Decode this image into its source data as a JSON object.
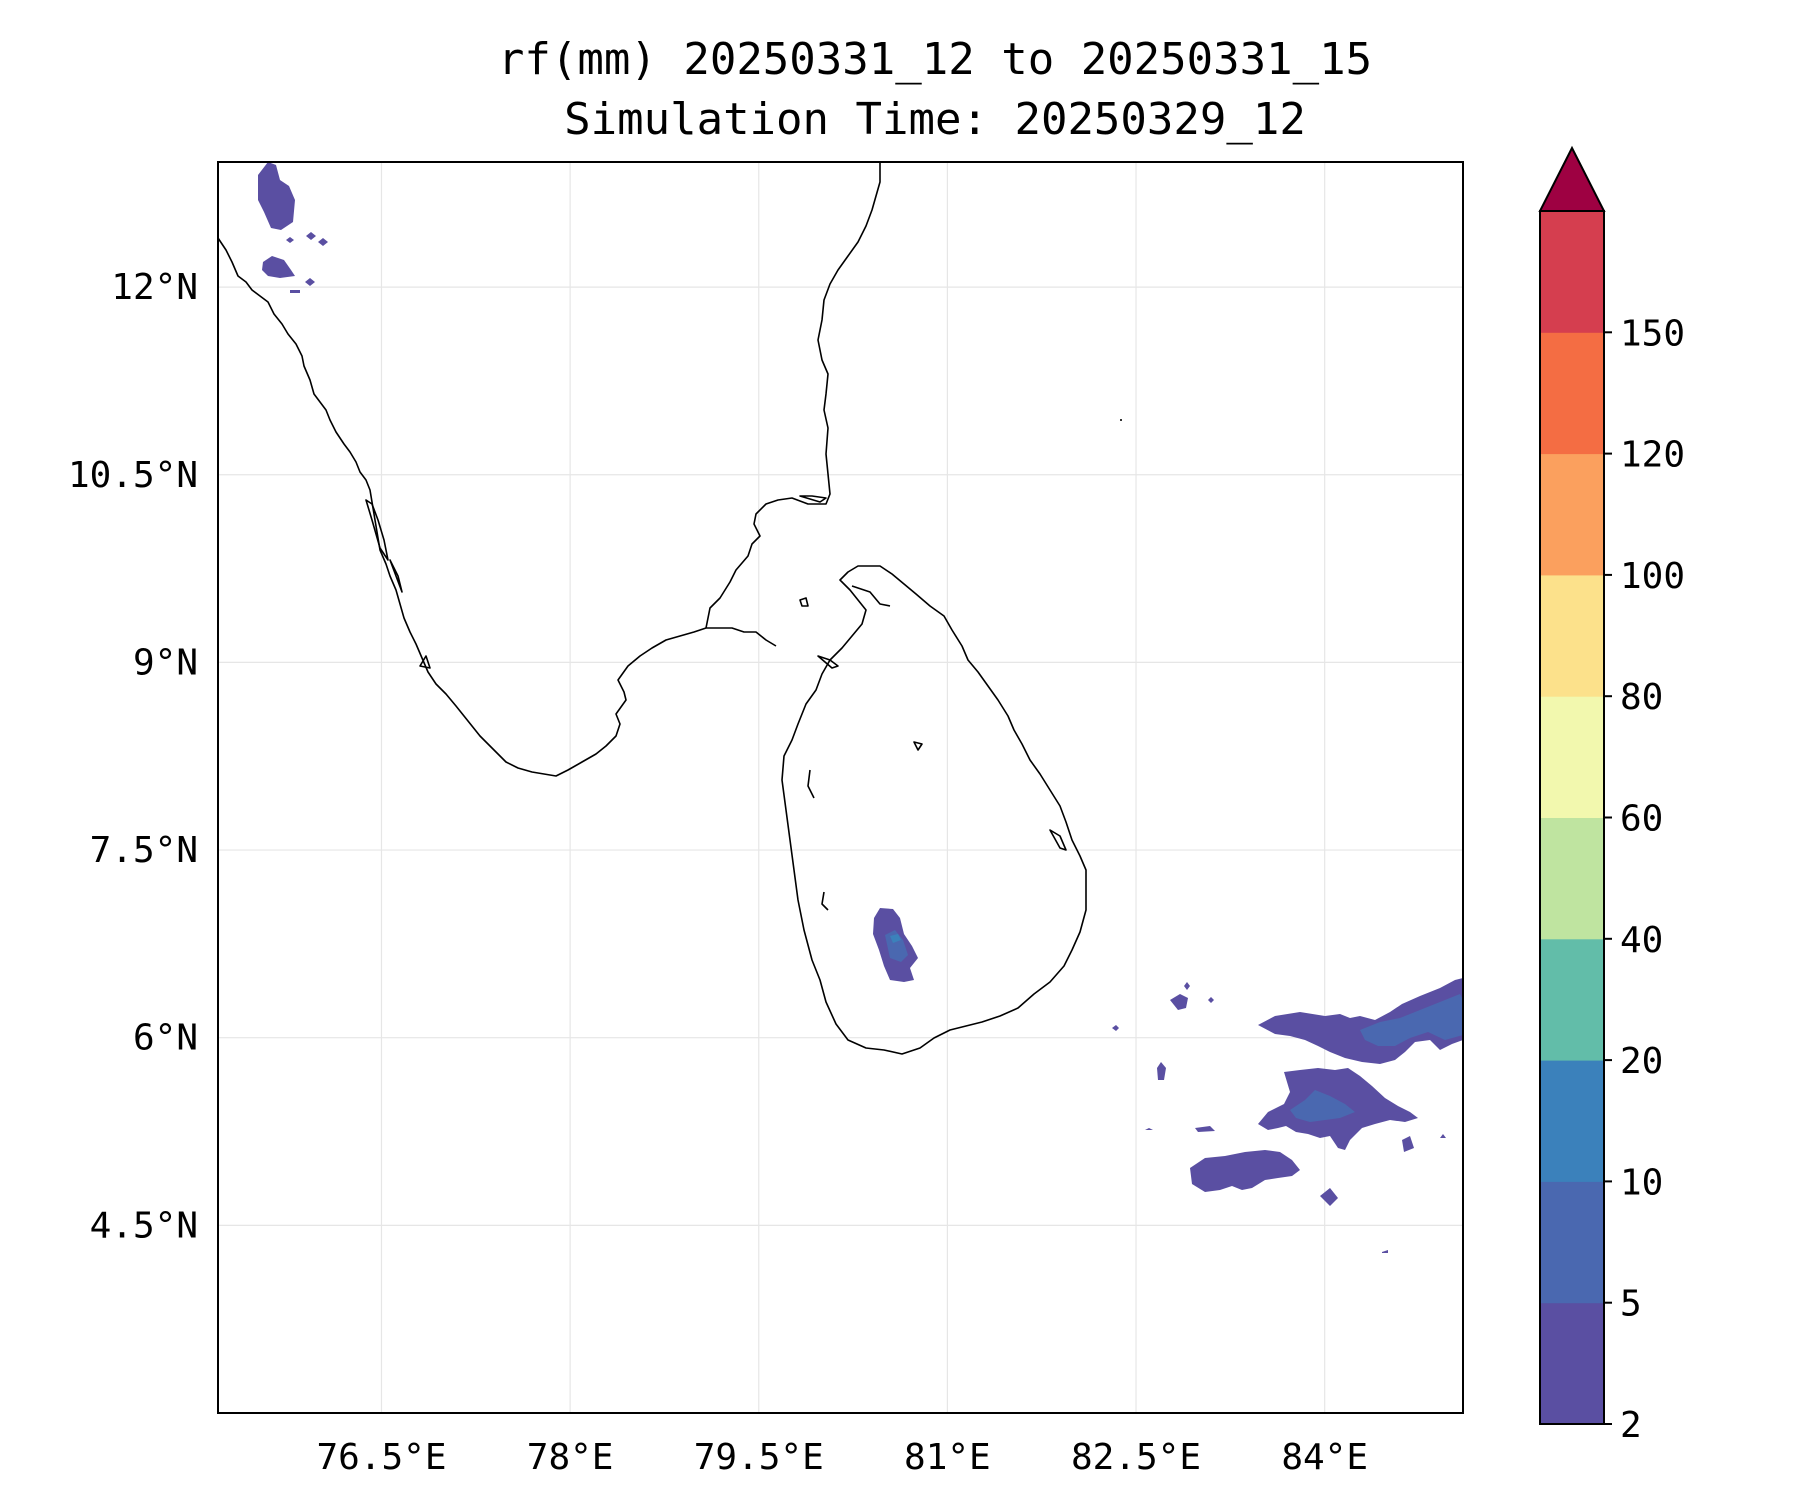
{
  "title": {
    "line1": "rf(mm) 20250331_12 to 20250331_15",
    "line2": "Simulation Time: 20250329_12"
  },
  "map": {
    "lon_range": [
      75.2,
      85.1
    ],
    "lat_range": [
      3.0,
      13.0
    ],
    "x_ticks": [
      {
        "value": 76.5,
        "label": "76.5°E"
      },
      {
        "value": 78.0,
        "label": "78°E"
      },
      {
        "value": 79.5,
        "label": "79.5°E"
      },
      {
        "value": 81.0,
        "label": "81°E"
      },
      {
        "value": 82.5,
        "label": "82.5°E"
      },
      {
        "value": 84.0,
        "label": "84°E"
      }
    ],
    "y_ticks": [
      {
        "value": 12.0,
        "label": "12°N"
      },
      {
        "value": 10.5,
        "label": "10.5°N"
      },
      {
        "value": 9.0,
        "label": "9°N"
      },
      {
        "value": 7.5,
        "label": "7.5°N"
      },
      {
        "value": 6.0,
        "label": "6°N"
      },
      {
        "value": 4.5,
        "label": "4.5°N"
      }
    ],
    "grid_color": "#e6e6e6",
    "coastline_color": "#000000"
  },
  "chart_data": {
    "type": "heatmap",
    "title": "rf(mm) 20250331_12 to 20250331_15",
    "subtitle": "Simulation Time: 20250329_12",
    "variable": "rf(mm)",
    "colorbar": {
      "levels": [
        2,
        5,
        10,
        20,
        40,
        60,
        80,
        100,
        120,
        150
      ],
      "labels": [
        "2",
        "5",
        "10",
        "20",
        "40",
        "60",
        "80",
        "100",
        "120",
        "150"
      ],
      "colors": [
        "#5a4fa2",
        "#4a68b0",
        "#3b81bb",
        "#62bda9",
        "#bfe4a0",
        "#f2f8ae",
        "#fce18b",
        "#fba05e",
        "#f46d43",
        "#d53e4f"
      ],
      "extend_color": "#9e0142",
      "extend": "max"
    },
    "rain_areas": [
      {
        "name": "northwest-coast-cluster",
        "lon": 75.7,
        "lat": 12.7,
        "class": "2-5"
      },
      {
        "name": "northwest-small-cell",
        "lon": 75.6,
        "lat": 12.1,
        "class": "2-5"
      },
      {
        "name": "sri-lanka-central-highlands",
        "lon": 80.75,
        "lat": 6.75,
        "class": "5-10"
      },
      {
        "name": "southeast-ocean-band-upper",
        "lon": 84.2,
        "lat": 5.9,
        "class": "5-10"
      },
      {
        "name": "southeast-ocean-band-middle",
        "lon": 83.6,
        "lat": 5.3,
        "class": "5-10"
      },
      {
        "name": "southeast-ocean-band-lower",
        "lon": 83.0,
        "lat": 4.95,
        "class": "2-5"
      },
      {
        "name": "isolated-cell-east",
        "lon": 82.7,
        "lat": 6.3,
        "class": "2-5"
      },
      {
        "name": "isolated-cell-south",
        "lon": 83.9,
        "lat": 4.75,
        "class": "2-5"
      }
    ]
  }
}
